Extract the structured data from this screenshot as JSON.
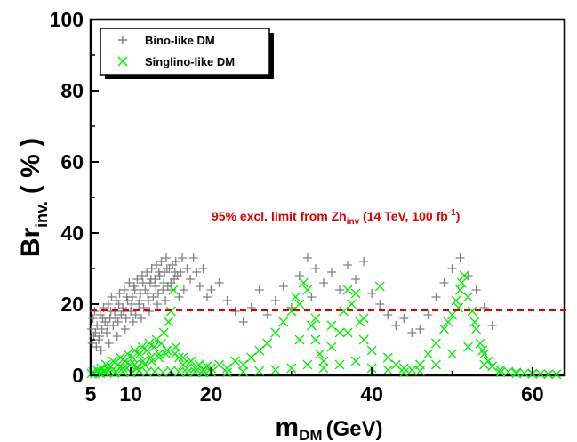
{
  "chart_data": {
    "type": "scatter",
    "title": "",
    "xlabel": {
      "main": "m",
      "sub": "DM",
      "tail": "(GeV)"
    },
    "ylabel": {
      "main": "Br",
      "sub": "inv.",
      "tail": "( % )"
    },
    "xlim": [
      5,
      64
    ],
    "ylim": [
      0,
      100
    ],
    "xticks": [
      5,
      10,
      20,
      40,
      60
    ],
    "yticks": [
      0,
      20,
      40,
      60,
      80,
      100
    ],
    "grid": false,
    "legend_position": "top-left",
    "legend": [
      {
        "label": "Bino-like DM",
        "marker": "plus",
        "color": "#808080"
      },
      {
        "label": "Singlino-like DM",
        "marker": "x",
        "color": "#00ee00"
      }
    ],
    "reference_line": {
      "y": 18.3,
      "color": "#dd0000",
      "style": "dashed",
      "label_main": "95% excl. limit from  Zh",
      "label_sub": "inv",
      "label_mid": " (14 TeV, 100 fb",
      "label_sup": "-1",
      "label_end": ")"
    },
    "series": [
      {
        "label": "Bino-like DM",
        "marker": "plus",
        "color": "#808080",
        "points": [
          [
            5.1,
            13
          ],
          [
            5.2,
            9
          ],
          [
            5.3,
            16
          ],
          [
            5.4,
            11
          ],
          [
            5.5,
            18
          ],
          [
            5.6,
            12
          ],
          [
            5.8,
            14
          ],
          [
            6.0,
            10
          ],
          [
            6.2,
            17
          ],
          [
            6.4,
            13
          ],
          [
            6.6,
            19
          ],
          [
            6.8,
            15
          ],
          [
            7.0,
            12
          ],
          [
            7.2,
            20
          ],
          [
            7.4,
            16
          ],
          [
            7.6,
            22
          ],
          [
            7.8,
            14
          ],
          [
            8.0,
            18
          ],
          [
            8.2,
            21
          ],
          [
            8.4,
            15
          ],
          [
            8.6,
            23
          ],
          [
            8.8,
            17
          ],
          [
            9.0,
            19
          ],
          [
            9.2,
            24
          ],
          [
            9.4,
            16
          ],
          [
            9.6,
            21
          ],
          [
            9.8,
            26
          ],
          [
            10.0,
            18
          ],
          [
            10.2,
            22
          ],
          [
            10.4,
            25
          ],
          [
            10.6,
            17
          ],
          [
            10.8,
            27
          ],
          [
            11.0,
            20
          ],
          [
            11.2,
            23
          ],
          [
            11.4,
            28
          ],
          [
            11.6,
            19
          ],
          [
            11.8,
            24
          ],
          [
            12.0,
            29
          ],
          [
            12.2,
            21
          ],
          [
            12.4,
            26
          ],
          [
            12.6,
            30
          ],
          [
            12.8,
            22
          ],
          [
            13.0,
            27
          ],
          [
            13.2,
            31
          ],
          [
            13.4,
            23
          ],
          [
            13.6,
            28
          ],
          [
            13.8,
            32
          ],
          [
            14.0,
            24
          ],
          [
            14.2,
            29
          ],
          [
            14.4,
            33
          ],
          [
            14.6,
            25
          ],
          [
            14.8,
            30
          ],
          [
            15.0,
            26
          ],
          [
            15.2,
            31
          ],
          [
            15.4,
            27
          ],
          [
            15.6,
            32
          ],
          [
            15.8,
            28
          ],
          [
            16.0,
            22
          ],
          [
            16.2,
            29
          ],
          [
            16.4,
            33
          ],
          [
            16.6,
            24
          ],
          [
            17.0,
            30
          ],
          [
            17.4,
            27
          ],
          [
            17.8,
            33
          ],
          [
            18.2,
            29
          ],
          [
            18.6,
            25
          ],
          [
            19.0,
            30
          ],
          [
            19.5,
            22
          ],
          [
            20.0,
            24
          ],
          [
            21.0,
            26
          ],
          [
            22.0,
            21
          ],
          [
            23.0,
            18
          ],
          [
            24.0,
            15
          ],
          [
            25.0,
            19
          ],
          [
            26.0,
            24
          ],
          [
            27.0,
            17
          ],
          [
            28.0,
            21
          ],
          [
            29.0,
            25
          ],
          [
            30.0,
            19
          ],
          [
            31.0,
            28
          ],
          [
            32.0,
            33
          ],
          [
            32.5,
            22
          ],
          [
            33.0,
            30
          ],
          [
            34.0,
            26
          ],
          [
            35.0,
            29
          ],
          [
            36.0,
            24
          ],
          [
            37.0,
            31
          ],
          [
            38.0,
            27
          ],
          [
            39.0,
            32
          ],
          [
            40.0,
            23
          ],
          [
            41.0,
            20
          ],
          [
            42.0,
            17
          ],
          [
            43.0,
            14
          ],
          [
            44.0,
            16
          ],
          [
            45.0,
            12
          ],
          [
            46.0,
            13
          ],
          [
            47.0,
            17
          ],
          [
            48.0,
            22
          ],
          [
            49.0,
            26
          ],
          [
            50.0,
            30
          ],
          [
            51.0,
            33
          ],
          [
            52.0,
            28
          ],
          [
            53.0,
            24
          ],
          [
            54.0,
            19
          ],
          [
            55.0,
            14
          ],
          [
            6.1,
            11
          ],
          [
            7.1,
            14
          ],
          [
            8.1,
            16
          ],
          [
            9.1,
            18
          ],
          [
            10.1,
            20
          ],
          [
            11.1,
            21
          ],
          [
            12.1,
            23
          ],
          [
            13.1,
            25
          ],
          [
            14.1,
            26
          ],
          [
            15.1,
            24
          ],
          [
            6.5,
            16
          ],
          [
            7.5,
            18
          ],
          [
            8.5,
            20
          ],
          [
            9.5,
            22
          ],
          [
            10.5,
            24
          ],
          [
            11.5,
            26
          ],
          [
            12.5,
            27
          ],
          [
            13.5,
            29
          ],
          [
            14.5,
            30
          ],
          [
            15.5,
            29
          ],
          [
            5.7,
            8
          ],
          [
            6.3,
            7
          ],
          [
            7.3,
            9
          ],
          [
            8.3,
            11
          ],
          [
            9.3,
            13
          ],
          [
            10.3,
            15
          ],
          [
            11.3,
            16
          ],
          [
            12.3,
            18
          ],
          [
            13.3,
            20
          ],
          [
            14.3,
            21
          ]
        ]
      },
      {
        "label": "Singlino-like DM",
        "marker": "x",
        "color": "#00ee00",
        "points": [
          [
            5.1,
            0.5
          ],
          [
            5.3,
            1
          ],
          [
            5.5,
            0.5
          ],
          [
            5.8,
            1.5
          ],
          [
            6.0,
            0.8
          ],
          [
            6.3,
            2
          ],
          [
            6.6,
            1
          ],
          [
            6.9,
            3
          ],
          [
            7.2,
            1.5
          ],
          [
            7.5,
            2.5
          ],
          [
            7.8,
            4
          ],
          [
            8.1,
            1
          ],
          [
            8.4,
            3
          ],
          [
            8.7,
            5
          ],
          [
            9.0,
            2
          ],
          [
            9.3,
            4
          ],
          [
            9.6,
            6
          ],
          [
            9.9,
            3
          ],
          [
            10.2,
            5
          ],
          [
            10.5,
            7
          ],
          [
            10.8,
            2
          ],
          [
            11.1,
            6
          ],
          [
            11.4,
            8
          ],
          [
            11.7,
            3
          ],
          [
            12.0,
            7
          ],
          [
            12.3,
            9
          ],
          [
            12.6,
            4
          ],
          [
            12.9,
            8
          ],
          [
            13.2,
            10
          ],
          [
            13.5,
            5
          ],
          [
            13.8,
            9
          ],
          [
            14.1,
            12
          ],
          [
            14.4,
            6
          ],
          [
            14.7,
            15
          ],
          [
            15.0,
            18
          ],
          [
            15.3,
            24
          ],
          [
            15.6,
            8
          ],
          [
            16.0,
            5
          ],
          [
            16.5,
            3
          ],
          [
            17.0,
            2
          ],
          [
            17.5,
            4
          ],
          [
            18.0,
            2
          ],
          [
            18.5,
            3
          ],
          [
            19.0,
            1.5
          ],
          [
            19.5,
            2.5
          ],
          [
            20.0,
            2
          ],
          [
            21.0,
            3
          ],
          [
            22.0,
            2
          ],
          [
            23.0,
            4
          ],
          [
            24.0,
            3
          ],
          [
            25.0,
            5
          ],
          [
            26.0,
            7
          ],
          [
            27.0,
            9
          ],
          [
            28.0,
            12
          ],
          [
            29.0,
            15
          ],
          [
            30.0,
            18
          ],
          [
            30.5,
            22
          ],
          [
            31.0,
            20
          ],
          [
            31.5,
            26
          ],
          [
            32.0,
            24
          ],
          [
            32.5,
            14
          ],
          [
            33.0,
            10
          ],
          [
            33.5,
            6
          ],
          [
            34.0,
            4
          ],
          [
            35.0,
            8
          ],
          [
            36.0,
            12
          ],
          [
            36.5,
            18
          ],
          [
            37.0,
            24
          ],
          [
            37.5,
            20
          ],
          [
            38.0,
            23
          ],
          [
            38.5,
            15
          ],
          [
            39.0,
            10
          ],
          [
            40.0,
            7
          ],
          [
            41.0,
            25
          ],
          [
            42.0,
            5
          ],
          [
            43.0,
            3
          ],
          [
            44.0,
            2
          ],
          [
            45.0,
            1.5
          ],
          [
            46.0,
            3
          ],
          [
            47.0,
            6
          ],
          [
            48.0,
            9
          ],
          [
            49.0,
            13
          ],
          [
            50.0,
            17
          ],
          [
            50.5,
            21
          ],
          [
            51.0,
            24
          ],
          [
            51.5,
            28
          ],
          [
            52.0,
            22
          ],
          [
            52.5,
            18
          ],
          [
            53.0,
            13
          ],
          [
            53.5,
            9
          ],
          [
            54.0,
            6
          ],
          [
            54.5,
            4
          ],
          [
            55.0,
            2.5
          ],
          [
            56.0,
            1.5
          ],
          [
            57.0,
            1
          ],
          [
            58.0,
            0.8
          ],
          [
            59.0,
            0.6
          ],
          [
            60.0,
            0.5
          ],
          [
            61.0,
            0.4
          ],
          [
            62.0,
            0.3
          ],
          [
            6.2,
            0.5
          ],
          [
            7.0,
            0.8
          ],
          [
            8.0,
            0.6
          ],
          [
            9.0,
            1
          ],
          [
            10.0,
            0.7
          ],
          [
            11.0,
            1.2
          ],
          [
            12.0,
            0.9
          ],
          [
            13.0,
            1.1
          ],
          [
            14.0,
            0.8
          ],
          [
            15.0,
            1.3
          ],
          [
            16.0,
            1
          ],
          [
            17.0,
            0.8
          ],
          [
            18.0,
            1
          ],
          [
            19.0,
            0.7
          ],
          [
            20.0,
            0.9
          ],
          [
            22.0,
            0.8
          ],
          [
            24.0,
            1
          ],
          [
            26.0,
            1.2
          ],
          [
            28.0,
            1.5
          ],
          [
            30.0,
            2
          ],
          [
            32.0,
            3
          ],
          [
            34.0,
            2
          ],
          [
            36.0,
            3
          ],
          [
            38.0,
            4
          ],
          [
            40.0,
            2
          ],
          [
            42.0,
            1.5
          ],
          [
            44.0,
            0.8
          ],
          [
            46.0,
            1.2
          ],
          [
            48.0,
            3
          ],
          [
            50.0,
            6
          ],
          [
            52.0,
            8
          ],
          [
            54.0,
            3
          ],
          [
            56.0,
            0.8
          ],
          [
            58.0,
            0.5
          ],
          [
            60.0,
            0.4
          ],
          [
            62.0,
            0.3
          ],
          [
            63.0,
            0.3
          ],
          [
            9.5,
            2
          ],
          [
            10.5,
            3
          ],
          [
            11.5,
            4
          ],
          [
            12.5,
            5
          ],
          [
            13.5,
            6
          ],
          [
            14.5,
            7
          ],
          [
            15.5,
            6
          ],
          [
            16.5,
            5
          ],
          [
            17.5,
            4
          ],
          [
            18.5,
            3
          ],
          [
            31.0,
            10
          ],
          [
            33.0,
            16
          ],
          [
            35.0,
            14
          ],
          [
            37.0,
            12
          ],
          [
            39.0,
            16
          ],
          [
            49.5,
            15
          ],
          [
            50.8,
            19
          ],
          [
            51.2,
            26
          ],
          [
            52.8,
            15
          ],
          [
            53.8,
            7
          ]
        ]
      }
    ]
  }
}
